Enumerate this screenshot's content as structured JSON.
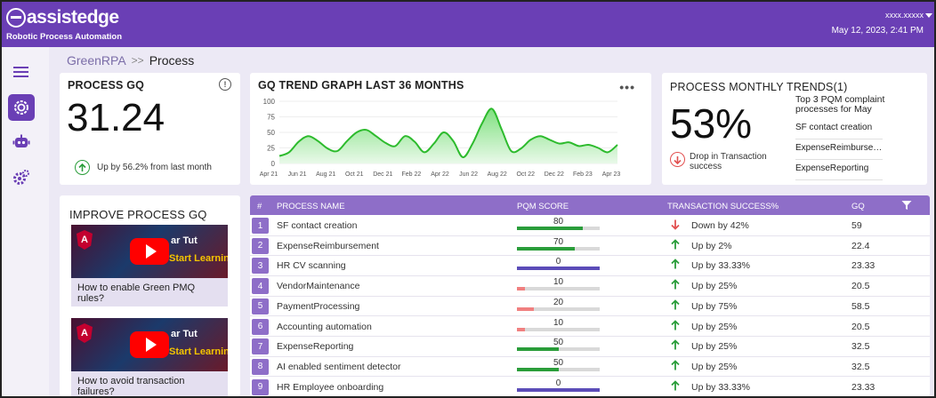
{
  "header": {
    "brand": "assistedge",
    "tagline": "Robotic Process Automation",
    "user": "xxxx.xxxxx",
    "datetime": "May 12, 2023, 2:41 PM"
  },
  "breadcrumb": {
    "parent": "GreenRPA",
    "separator": ">>",
    "current": "Process"
  },
  "process_gq": {
    "title": "PROCESS GQ",
    "info": "!",
    "value": "31.24",
    "change": "Up by 56.2% from last month"
  },
  "trend": {
    "title": "GQ TREND GRAPH LAST 36 MONTHS",
    "more": "•••",
    "colors": {
      "line": "#2dbb2d",
      "fill_top": "#7fe07f",
      "fill_bottom": "#e9f9e9"
    }
  },
  "chart_data": {
    "type": "area",
    "title": "GQ TREND GRAPH LAST 36 MONTHS",
    "xlabel": "",
    "ylabel": "",
    "ylim": [
      0,
      100
    ],
    "y_ticks": [
      "100",
      "75",
      "50",
      "25",
      "0"
    ],
    "x_ticks": [
      "Apr 21",
      "Jun 21",
      "Aug 21",
      "Oct 21",
      "Dec 21",
      "Feb 22",
      "Apr 22",
      "Jun 22",
      "Aug 22",
      "Oct 22",
      "Dec 22",
      "Feb 23",
      "Apr 23"
    ],
    "series": [
      {
        "values": [
          12,
          18,
          35,
          44,
          36,
          24,
          20,
          36,
          50,
          54,
          44,
          33,
          28,
          44,
          35,
          18,
          32,
          50,
          36,
          10,
          32,
          65,
          88,
          55,
          20,
          24,
          38,
          44,
          38,
          32,
          34,
          28,
          30,
          25,
          18,
          30
        ]
      }
    ]
  },
  "monthly": {
    "title": "PROCESS MONTHLY TRENDS(1)",
    "value": "53%",
    "drop_line1": "Drop in Transaction",
    "drop_line2": "success",
    "top3_title": "Top 3 PQM complaint processes for May",
    "top3": [
      "SF contact creation",
      "ExpenseReimbursement",
      "ExpenseReporting"
    ]
  },
  "improve": {
    "title": "IMPROVE PROCESS GQ",
    "videos": [
      {
        "thumb_text": "ar Tut",
        "thumb_text2": "Start Learning",
        "caption": "How to enable Green PMQ rules?"
      },
      {
        "thumb_text": "ar Tut",
        "thumb_text2": "Start Learning",
        "caption": "How to avoid transaction failures?"
      }
    ]
  },
  "table": {
    "headers": {
      "num": "#",
      "name": "PROCESS NAME",
      "pqm": "PQM SCORE",
      "trans": "TRANSACTION SUCCESS%",
      "gq": "GQ"
    },
    "filter_icon": "filter-icon",
    "rows": [
      {
        "n": "1",
        "name": "SF contact creation",
        "score": "80",
        "score_level": 0.8,
        "bar_color": "#2a9d3a",
        "dir": "down",
        "trans": "Down by 42%",
        "gq": "59"
      },
      {
        "n": "2",
        "name": "ExpenseReimbursement",
        "score": "70",
        "score_level": 0.7,
        "bar_color": "#2a9d3a",
        "dir": "up",
        "trans": "Up by 2%",
        "gq": "22.4"
      },
      {
        "n": "3",
        "name": "HR CV scanning",
        "score": "0",
        "score_level": 1.0,
        "bar_color": "#5b4cb8",
        "dir": "up",
        "trans": "Up by 33.33%",
        "gq": "23.33"
      },
      {
        "n": "4",
        "name": "VendorMaintenance",
        "score": "10",
        "score_level": 0.1,
        "bar_color": "#f08080",
        "dir": "up",
        "trans": "Up by 25%",
        "gq": "20.5"
      },
      {
        "n": "5",
        "name": "PaymentProcessing",
        "score": "20",
        "score_level": 0.2,
        "bar_color": "#f08080",
        "dir": "up",
        "trans": "Up by 75%",
        "gq": "58.5"
      },
      {
        "n": "6",
        "name": "Accounting automation",
        "score": "10",
        "score_level": 0.1,
        "bar_color": "#f08080",
        "dir": "up",
        "trans": "Up by 25%",
        "gq": "20.5"
      },
      {
        "n": "7",
        "name": "ExpenseReporting",
        "score": "50",
        "score_level": 0.5,
        "bar_color": "#2a9d3a",
        "dir": "up",
        "trans": "Up by 25%",
        "gq": "32.5"
      },
      {
        "n": "8",
        "name": "AI enabled sentiment detector",
        "score": "50",
        "score_level": 0.5,
        "bar_color": "#2a9d3a",
        "dir": "up",
        "trans": "Up by 25%",
        "gq": "32.5"
      },
      {
        "n": "9",
        "name": "HR Employee onboarding",
        "score": "0",
        "score_level": 1.0,
        "bar_color": "#5b4cb8",
        "dir": "up",
        "trans": "Up by 33.33%",
        "gq": "23.33"
      }
    ]
  },
  "sidebar": {
    "items": [
      {
        "icon": "menu-icon"
      },
      {
        "icon": "process-gear-icon"
      },
      {
        "icon": "bot-icon"
      },
      {
        "icon": "settings-gears-icon"
      }
    ]
  }
}
